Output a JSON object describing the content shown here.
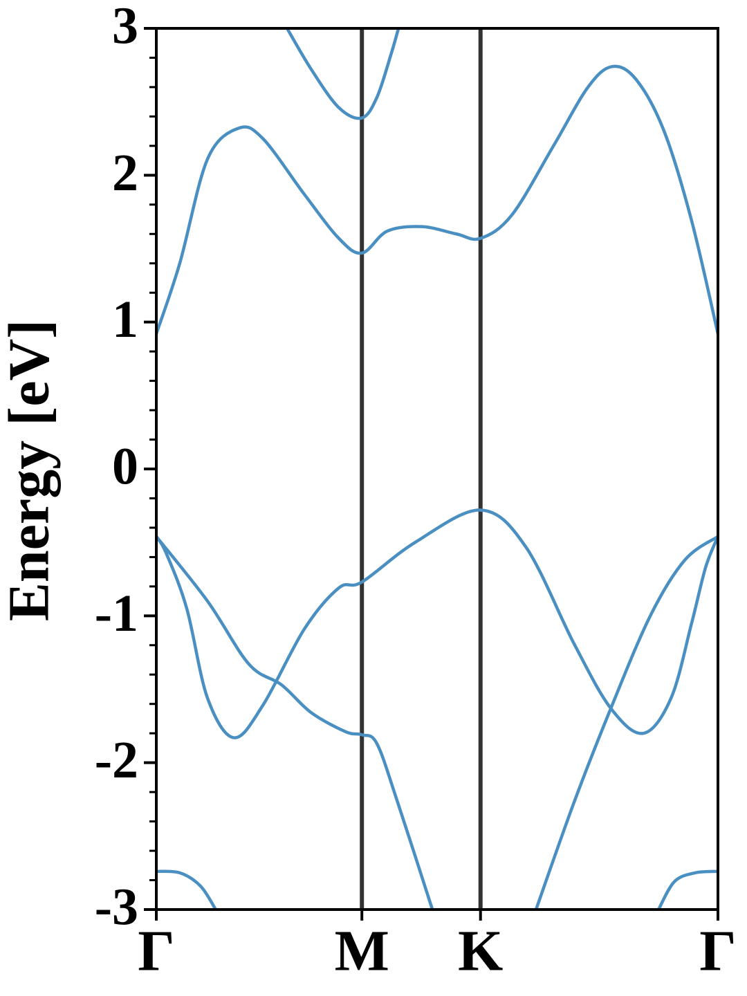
{
  "chart_data": {
    "type": "line",
    "ylabel": "Energy [eV]",
    "xlim": [
      0,
      2.732
    ],
    "ylim": [
      -3,
      3
    ],
    "xticks": [
      {
        "value": 0,
        "label": "Γ"
      },
      {
        "value": 1,
        "label": "M"
      },
      {
        "value": 1.577,
        "label": "K"
      },
      {
        "value": 2.732,
        "label": "Γ"
      }
    ],
    "yticks": [
      -3,
      -2,
      -1,
      0,
      1,
      2,
      3
    ],
    "minor_ytick_step": 0.2,
    "series": [
      {
        "color": "#4a8fc2",
        "x": [
          0.636,
          0.754,
          0.888,
          1.0,
          1.073,
          1.141,
          1.178
        ],
        "values": [
          3.0,
          2.72,
          2.46,
          2.39,
          2.53,
          2.82,
          3.0
        ]
      },
      {
        "color": "#4a8fc2",
        "x": [
          0,
          0.114,
          0.249,
          0.4,
          0.518,
          0.72,
          0.888,
          1.0,
          1.124,
          1.292,
          1.46,
          1.577,
          1.73,
          1.932,
          2.1,
          2.218,
          2.335,
          2.47,
          2.604,
          2.732
        ],
        "values": [
          0.92,
          1.4,
          2.11,
          2.32,
          2.25,
          1.87,
          1.57,
          1.47,
          1.62,
          1.65,
          1.6,
          1.57,
          1.73,
          2.2,
          2.6,
          2.74,
          2.65,
          2.3,
          1.69,
          0.92
        ]
      },
      {
        "color": "#4a8fc2",
        "x": [
          0,
          0.047,
          0.148,
          0.249,
          0.377,
          0.518,
          0.72,
          0.888,
          1.0,
          1.259,
          1.577,
          1.797,
          2.032,
          2.211,
          2.369,
          2.504,
          2.604,
          2.672,
          2.732
        ],
        "values": [
          -0.46,
          -0.57,
          -0.95,
          -1.56,
          -1.83,
          -1.61,
          -1.09,
          -0.81,
          -0.77,
          -0.5,
          -0.28,
          -0.53,
          -1.19,
          -1.63,
          -1.8,
          -1.56,
          -1.05,
          -0.67,
          -0.46
        ]
      },
      {
        "color": "#4a8fc2",
        "x": [
          0,
          0.249,
          0.451,
          0.609,
          0.754,
          0.922,
          1.0,
          1.073,
          1.174,
          1.343
        ],
        "values": [
          -0.46,
          -0.9,
          -1.33,
          -1.47,
          -1.66,
          -1.79,
          -1.81,
          -1.87,
          -2.27,
          -3.0
        ]
      },
      {
        "color": "#4a8fc2",
        "x": [
          1.847,
          2.032,
          2.211,
          2.403,
          2.571,
          2.732
        ],
        "values": [
          -3.0,
          -2.27,
          -1.63,
          -1.0,
          -0.62,
          -0.46
        ]
      },
      {
        "color": "#4a8fc2",
        "x": [
          0,
          0.114,
          0.215,
          0.289
        ],
        "values": [
          -2.74,
          -2.75,
          -2.84,
          -3.0
        ]
      },
      {
        "color": "#4a8fc2",
        "x": [
          2.443,
          2.52,
          2.621,
          2.732
        ],
        "values": [
          -3.0,
          -2.81,
          -2.75,
          -2.74
        ]
      }
    ]
  }
}
